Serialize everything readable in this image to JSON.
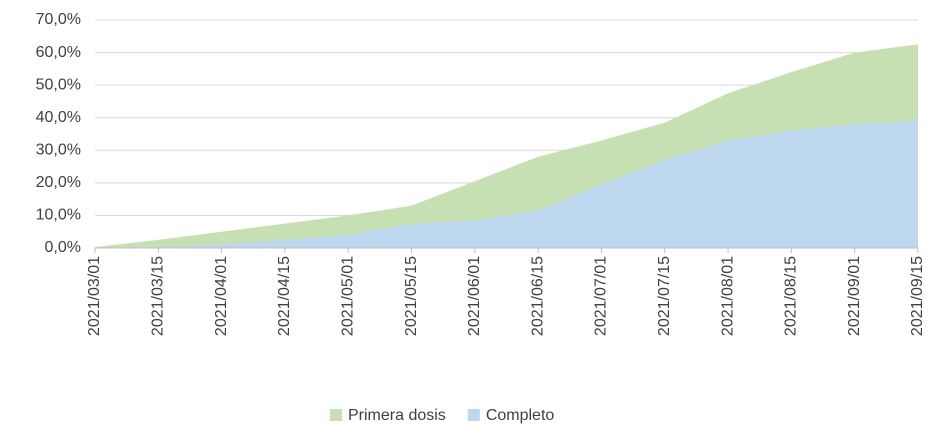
{
  "chart_data": {
    "type": "area",
    "categories": [
      "2021/03/01",
      "2021/03/15",
      "2021/04/01",
      "2021/04/15",
      "2021/05/01",
      "2021/05/15",
      "2021/06/01",
      "2021/06/15",
      "2021/07/01",
      "2021/07/15",
      "2021/08/01",
      "2021/08/15",
      "2021/09/01",
      "2021/09/15"
    ],
    "series": [
      {
        "name": "Primera dosis",
        "color": "#c6e0b4",
        "values": [
          0.3,
          2.5,
          5,
          7.5,
          10,
          13,
          20.5,
          28,
          33,
          38.5,
          47.5,
          54,
          60,
          62.5
        ]
      },
      {
        "name": "Completo",
        "color": "#bdd7ee",
        "values": [
          0,
          0.3,
          1,
          2.5,
          4,
          7.5,
          8.5,
          11.5,
          19.5,
          27,
          33,
          36,
          38,
          39
        ]
      }
    ],
    "ylim": [
      0,
      70
    ],
    "yticks": [
      {
        "value": 0,
        "label": "0,0%"
      },
      {
        "value": 10,
        "label": "10,0%"
      },
      {
        "value": 20,
        "label": "20,0%"
      },
      {
        "value": 30,
        "label": "30,0%"
      },
      {
        "value": 40,
        "label": "40,0%"
      },
      {
        "value": 50,
        "label": "50,0%"
      },
      {
        "value": 60,
        "label": "60,0%"
      },
      {
        "value": 70,
        "label": "70,0%"
      }
    ],
    "grid": true,
    "legend": "bottom"
  }
}
